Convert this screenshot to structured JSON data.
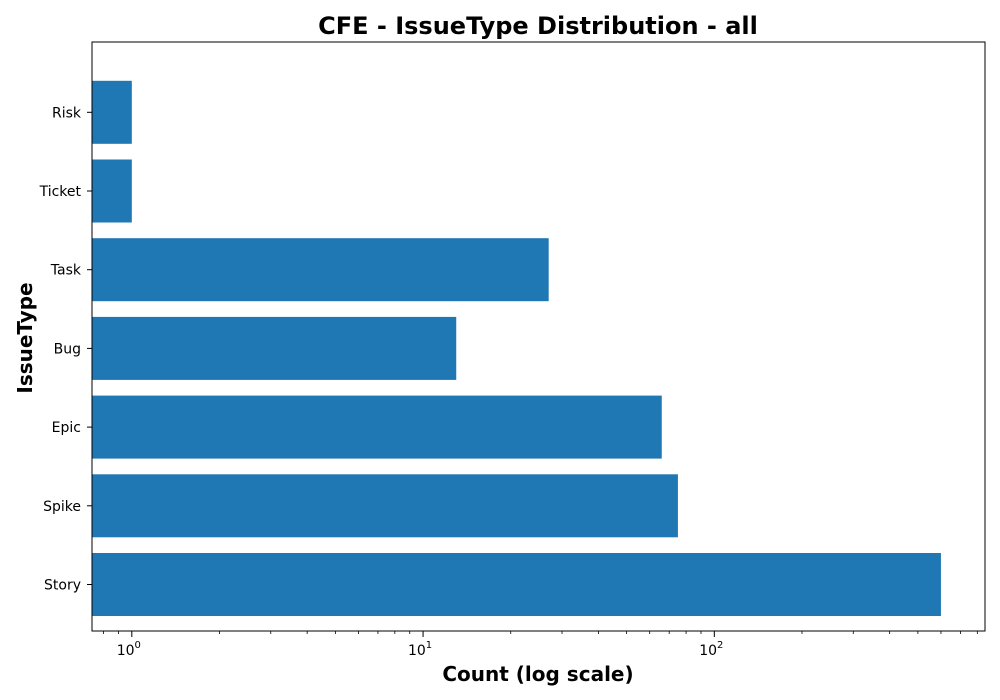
{
  "chart_data": {
    "type": "bar",
    "orientation": "horizontal",
    "title": "CFE - IssueType Distribution - all",
    "xlabel": "Count (log scale)",
    "ylabel": "IssueType",
    "x_scale": "log",
    "xlim": [
      0.73,
      850
    ],
    "x_ticks": [
      {
        "value": 1,
        "base": "10",
        "exp": "0"
      },
      {
        "value": 10,
        "base": "10",
        "exp": "1"
      },
      {
        "value": 100,
        "base": "10",
        "exp": "2"
      }
    ],
    "categories": [
      "Story",
      "Spike",
      "Epic",
      "Bug",
      "Task",
      "Ticket",
      "Risk"
    ],
    "values": [
      600,
      75,
      66,
      13,
      27,
      1,
      1
    ],
    "bar_color": "#1f77b4",
    "grid": false,
    "legend": "none"
  }
}
